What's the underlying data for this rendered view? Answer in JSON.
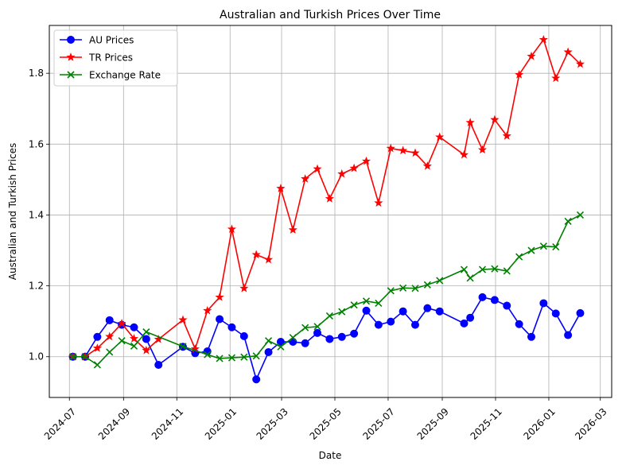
{
  "chart_data": {
    "type": "line",
    "title": "Australian and Turkish Prices Over Time",
    "xlabel": "Date",
    "ylabel": "Australian and Turkish Prices",
    "xlim": [
      "2024-06-08",
      "2026-03-14"
    ],
    "ylim": [
      0.885,
      1.935
    ],
    "grid": true,
    "legend_position": "top-left",
    "xticks": [
      "2024-07",
      "2024-09",
      "2024-11",
      "2025-01",
      "2025-03",
      "2025-05",
      "2025-07",
      "2025-09",
      "2025-11",
      "2026-01",
      "2026-03"
    ],
    "yticks": [
      "1.0",
      "1.2",
      "1.4",
      "1.6",
      "1.8"
    ],
    "yticks_values": [
      1.0,
      1.2,
      1.4,
      1.6,
      1.8
    ],
    "series": [
      {
        "name": "AU Prices",
        "color": "#0000ff",
        "marker": "circle",
        "points": [
          [
            "2024-07-05",
            1.0
          ],
          [
            "2024-07-19",
            1.0
          ],
          [
            "2024-08-02",
            1.056
          ],
          [
            "2024-08-16",
            1.103
          ],
          [
            "2024-08-30",
            1.09
          ],
          [
            "2024-09-13",
            1.083
          ],
          [
            "2024-09-27",
            1.05
          ],
          [
            "2024-10-11",
            0.977
          ],
          [
            "2024-11-08",
            1.028
          ],
          [
            "2024-11-22",
            1.01
          ],
          [
            "2024-12-06",
            1.015
          ],
          [
            "2024-12-20",
            1.106
          ],
          [
            "2025-01-03",
            1.083
          ],
          [
            "2025-01-17",
            1.058
          ],
          [
            "2025-01-31",
            0.936
          ],
          [
            "2025-02-14",
            1.013
          ],
          [
            "2025-02-28",
            1.042
          ],
          [
            "2025-03-14",
            1.042
          ],
          [
            "2025-03-28",
            1.038
          ],
          [
            "2025-04-11",
            1.067
          ],
          [
            "2025-04-25",
            1.05
          ],
          [
            "2025-05-09",
            1.056
          ],
          [
            "2025-05-23",
            1.065
          ],
          [
            "2025-06-06",
            1.13
          ],
          [
            "2025-06-20",
            1.09
          ],
          [
            "2025-07-04",
            1.099
          ],
          [
            "2025-07-18",
            1.128
          ],
          [
            "2025-08-01",
            1.09
          ],
          [
            "2025-08-15",
            1.137
          ],
          [
            "2025-08-29",
            1.128
          ],
          [
            "2025-09-26",
            1.094
          ],
          [
            "2025-10-03",
            1.11
          ],
          [
            "2025-10-17",
            1.168
          ],
          [
            "2025-10-31",
            1.16
          ],
          [
            "2025-11-14",
            1.144
          ],
          [
            "2025-11-28",
            1.092
          ],
          [
            "2025-12-12",
            1.056
          ],
          [
            "2025-12-26",
            1.151
          ],
          [
            "2026-01-09",
            1.122
          ],
          [
            "2026-01-23",
            1.061
          ],
          [
            "2026-02-06",
            1.123
          ]
        ]
      },
      {
        "name": "TR Prices",
        "color": "#ff0000",
        "marker": "star",
        "points": [
          [
            "2024-07-05",
            1.0
          ],
          [
            "2024-07-19",
            1.0
          ],
          [
            "2024-08-02",
            1.024
          ],
          [
            "2024-08-16",
            1.057
          ],
          [
            "2024-08-30",
            1.094
          ],
          [
            "2024-09-13",
            1.051
          ],
          [
            "2024-09-27",
            1.018
          ],
          [
            "2024-10-11",
            1.049
          ],
          [
            "2024-11-08",
            1.104
          ],
          [
            "2024-11-22",
            1.022
          ],
          [
            "2024-12-06",
            1.13
          ],
          [
            "2024-12-20",
            1.168
          ],
          [
            "2025-01-03",
            1.36
          ],
          [
            "2025-01-17",
            1.193
          ],
          [
            "2025-01-31",
            1.288
          ],
          [
            "2025-02-14",
            1.274
          ],
          [
            "2025-02-28",
            1.475
          ],
          [
            "2025-03-14",
            1.358
          ],
          [
            "2025-03-28",
            1.502
          ],
          [
            "2025-04-11",
            1.53
          ],
          [
            "2025-04-25",
            1.446
          ],
          [
            "2025-05-09",
            1.516
          ],
          [
            "2025-05-23",
            1.532
          ],
          [
            "2025-06-06",
            1.552
          ],
          [
            "2025-06-20",
            1.434
          ],
          [
            "2025-07-04",
            1.588
          ],
          [
            "2025-07-18",
            1.582
          ],
          [
            "2025-08-01",
            1.575
          ],
          [
            "2025-08-15",
            1.538
          ],
          [
            "2025-08-29",
            1.62
          ],
          [
            "2025-09-26",
            1.57
          ],
          [
            "2025-10-03",
            1.661
          ],
          [
            "2025-10-17",
            1.584
          ],
          [
            "2025-10-31",
            1.669
          ],
          [
            "2025-11-14",
            1.623
          ],
          [
            "2025-11-28",
            1.796
          ],
          [
            "2025-12-12",
            1.848
          ],
          [
            "2025-12-26",
            1.895
          ],
          [
            "2026-01-09",
            1.786
          ],
          [
            "2026-01-23",
            1.86
          ],
          [
            "2026-02-06",
            1.826
          ]
        ]
      },
      {
        "name": "Exchange Rate",
        "color": "#008000",
        "marker": "x",
        "points": [
          [
            "2024-07-05",
            1.0
          ],
          [
            "2024-07-19",
            1.0
          ],
          [
            "2024-08-02",
            0.977
          ],
          [
            "2024-08-16",
            1.013
          ],
          [
            "2024-08-30",
            1.045
          ],
          [
            "2024-09-13",
            1.03
          ],
          [
            "2024-09-27",
            1.07
          ],
          [
            "2024-11-08",
            1.029
          ],
          [
            "2024-12-06",
            1.006
          ],
          [
            "2024-12-20",
            0.995
          ],
          [
            "2025-01-03",
            0.997
          ],
          [
            "2025-01-17",
            0.999
          ],
          [
            "2025-01-31",
            1.002
          ],
          [
            "2025-02-14",
            1.045
          ],
          [
            "2025-02-28",
            1.028
          ],
          [
            "2025-03-14",
            1.054
          ],
          [
            "2025-03-28",
            1.082
          ],
          [
            "2025-04-11",
            1.085
          ],
          [
            "2025-04-25",
            1.115
          ],
          [
            "2025-05-09",
            1.127
          ],
          [
            "2025-05-23",
            1.146
          ],
          [
            "2025-06-06",
            1.157
          ],
          [
            "2025-06-20",
            1.151
          ],
          [
            "2025-07-04",
            1.186
          ],
          [
            "2025-07-18",
            1.194
          ],
          [
            "2025-08-01",
            1.193
          ],
          [
            "2025-08-15",
            1.203
          ],
          [
            "2025-08-29",
            1.215
          ],
          [
            "2025-09-26",
            1.246
          ],
          [
            "2025-10-03",
            1.222
          ],
          [
            "2025-10-17",
            1.246
          ],
          [
            "2025-10-31",
            1.248
          ],
          [
            "2025-11-14",
            1.242
          ],
          [
            "2025-11-28",
            1.282
          ],
          [
            "2025-12-12",
            1.3
          ],
          [
            "2025-12-26",
            1.312
          ],
          [
            "2026-01-09",
            1.31
          ],
          [
            "2026-01-23",
            1.382
          ],
          [
            "2026-02-06",
            1.4
          ]
        ]
      }
    ]
  }
}
